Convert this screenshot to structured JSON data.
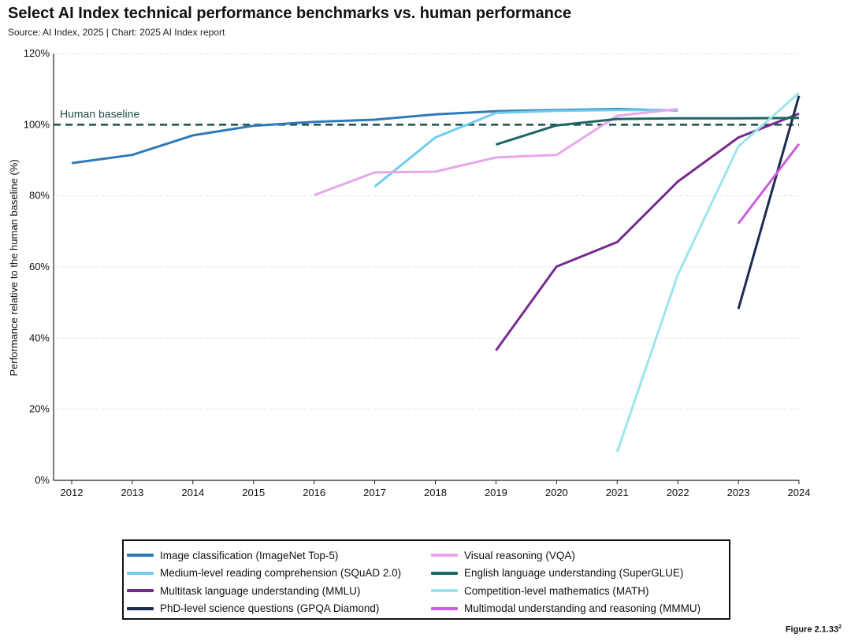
{
  "header": {
    "title": "Select AI Index technical performance benchmarks vs. human performance",
    "subtitle": "Source: AI Index, 2025 | Chart: 2025 AI Index report"
  },
  "footer": {
    "figure_label": "Figure 2.1.33",
    "figure_sup": "2"
  },
  "chart_data": {
    "type": "line",
    "ylabel": "Performance relative to the human baseline (%)",
    "xlabel": "",
    "ylim": [
      0,
      120
    ],
    "xlim": [
      2012,
      2024
    ],
    "x_ticks": [
      "2012",
      "2013",
      "2014",
      "2015",
      "2016",
      "2017",
      "2018",
      "2019",
      "2020",
      "2021",
      "2022",
      "2023",
      "2024"
    ],
    "y_ticks": [
      0,
      20,
      40,
      60,
      80,
      100,
      120
    ],
    "y_tick_labels": [
      "0%",
      "20%",
      "40%",
      "60%",
      "80%",
      "100%",
      "120%"
    ],
    "grid": "horizontal-dotted",
    "baseline": {
      "label": "Human baseline",
      "value": 100,
      "color": "#1f4e4a"
    },
    "legend_position": "bottom",
    "series": [
      {
        "name": "Image classification (ImageNet Top-5)",
        "color": "#2e7ab8",
        "points": [
          [
            2012,
            89.2
          ],
          [
            2013,
            91.5
          ],
          [
            2014,
            97.0
          ],
          [
            2015,
            99.7
          ],
          [
            2016,
            100.8
          ],
          [
            2017,
            101.4
          ],
          [
            2018,
            102.9
          ],
          [
            2019,
            103.8
          ],
          [
            2020,
            104.1
          ],
          [
            2021,
            104.4
          ],
          [
            2022,
            104.0
          ]
        ]
      },
      {
        "name": "Medium-level reading comprehension (SQuAD 2.0)",
        "color": "#6fcdf0",
        "points": [
          [
            2017,
            82.6
          ],
          [
            2018,
            96.4
          ],
          [
            2019,
            103.3
          ],
          [
            2020,
            103.9
          ],
          [
            2021,
            104.1
          ],
          [
            2022,
            104.1
          ]
        ]
      },
      {
        "name": "Multitask language understanding (MMLU)",
        "color": "#772b90",
        "points": [
          [
            2019,
            36.5
          ],
          [
            2020,
            60.1
          ],
          [
            2021,
            67.0
          ],
          [
            2022,
            84.0
          ],
          [
            2023,
            96.4
          ],
          [
            2024,
            103.1
          ]
        ]
      },
      {
        "name": "PhD-level science questions (GPQA Diamond)",
        "color": "#1b2b50",
        "points": [
          [
            2023,
            48.2
          ],
          [
            2024,
            108.1
          ]
        ]
      },
      {
        "name": "Visual reasoning (VQA)",
        "color": "#e7a6ec",
        "points": [
          [
            2016,
            80.2
          ],
          [
            2017,
            86.6
          ],
          [
            2018,
            86.8
          ],
          [
            2019,
            90.8
          ],
          [
            2020,
            91.5
          ],
          [
            2021,
            102.5
          ],
          [
            2022,
            104.4
          ]
        ]
      },
      {
        "name": "English language understanding (SuperGLUE)",
        "color": "#1c6664",
        "points": [
          [
            2019,
            94.4
          ],
          [
            2020,
            99.8
          ],
          [
            2021,
            101.6
          ],
          [
            2022,
            101.8
          ],
          [
            2023,
            101.8
          ],
          [
            2024,
            101.9
          ]
        ]
      },
      {
        "name": "Competition-level mathematics (MATH)",
        "color": "#9be6ea",
        "points": [
          [
            2021,
            8.0
          ],
          [
            2022,
            57.8
          ],
          [
            2023,
            93.9
          ],
          [
            2024,
            108.9
          ]
        ]
      },
      {
        "name": "Multimodal understanding and reasoning (MMMU)",
        "color": "#c95fdc",
        "points": [
          [
            2023,
            72.2
          ],
          [
            2024,
            94.6
          ]
        ]
      }
    ]
  }
}
